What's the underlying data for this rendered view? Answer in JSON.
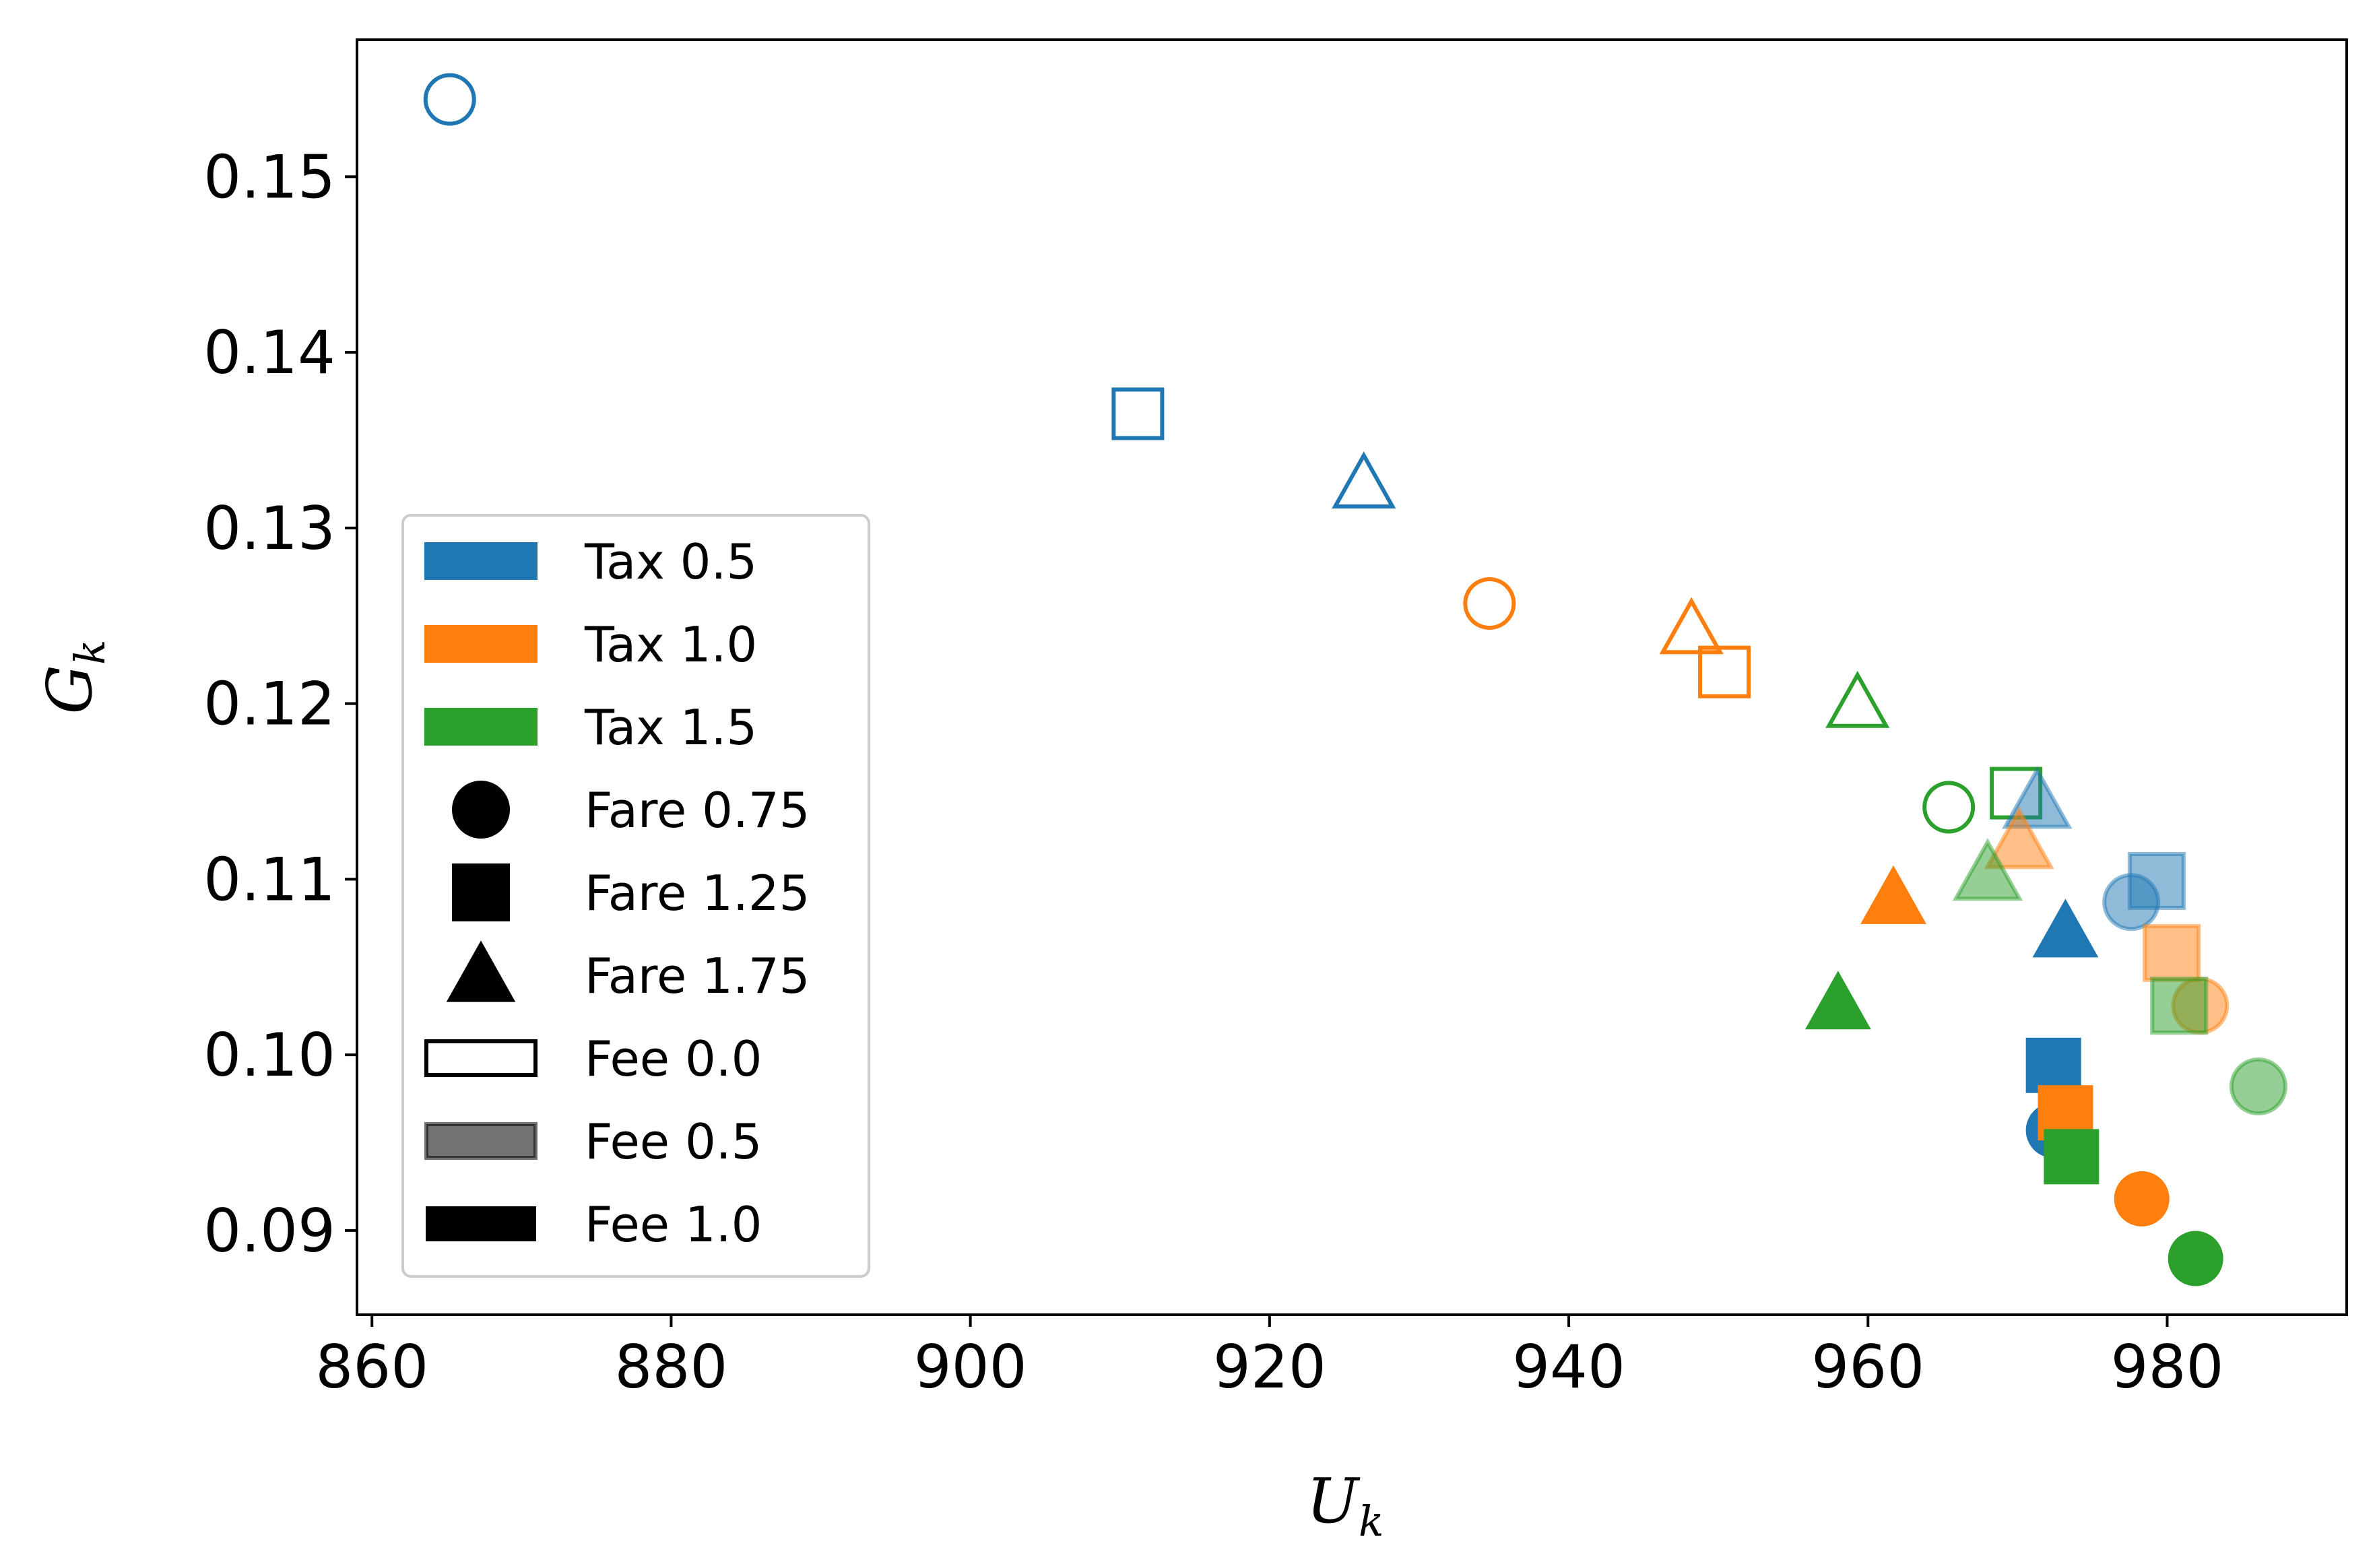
{
  "chart_data": {
    "type": "scatter",
    "title": "",
    "xlabel": "U",
    "xlabel_sub": "k",
    "ylabel": "G",
    "ylabel_sub": "k",
    "xlim": [
      859,
      992
    ],
    "ylim": [
      0.0852,
      0.1578
    ],
    "xticks": [
      860,
      880,
      900,
      920,
      940,
      960,
      980
    ],
    "xtick_labels": [
      "860",
      "880",
      "900",
      "920",
      "940",
      "960",
      "980"
    ],
    "yticks": [
      0.09,
      0.1,
      0.11,
      0.12,
      0.13,
      0.14,
      0.15
    ],
    "ytick_labels": [
      "0.09",
      "0.10",
      "0.11",
      "0.12",
      "0.13",
      "0.14",
      "0.15"
    ],
    "grid": false,
    "legend_position": "lower-left",
    "colors": {
      "Tax 0.5": "#1f77b4",
      "Tax 1.0": "#ff7f0e",
      "Tax 1.5": "#2ca02c"
    },
    "encoding": {
      "color": "tax",
      "marker": {
        "Fare 0.75": "circle",
        "Fare 1.25": "square",
        "Fare 1.75": "triangle"
      },
      "fill": {
        "Fee 0.0": "hollow",
        "Fee 0.5": "semi-transparent",
        "Fee 1.0": "solid"
      }
    },
    "legend": [
      {
        "label": "Tax 0.5",
        "kind": "patch",
        "color": "#1f77b4"
      },
      {
        "label": "Tax 1.0",
        "kind": "patch",
        "color": "#ff7f0e"
      },
      {
        "label": "Tax 1.5",
        "kind": "patch",
        "color": "#2ca02c"
      },
      {
        "label": "Fare 0.75",
        "kind": "marker",
        "marker": "circle",
        "color": "#000000"
      },
      {
        "label": "Fare 1.25",
        "kind": "marker",
        "marker": "square",
        "color": "#000000"
      },
      {
        "label": "Fare 1.75",
        "kind": "marker",
        "marker": "triangle",
        "color": "#000000"
      },
      {
        "label": "Fee 0.0",
        "kind": "fee",
        "fill": "hollow",
        "color": "#000000"
      },
      {
        "label": "Fee 0.5",
        "kind": "fee",
        "fill": "semi",
        "color": "#000000"
      },
      {
        "label": "Fee 1.0",
        "kind": "fee",
        "fill": "solid",
        "color": "#000000"
      }
    ],
    "points": [
      {
        "tax": "Tax 0.5",
        "fare": "Fare 0.75",
        "fee": "Fee 0.0",
        "marker": "circle",
        "fill": "hollow",
        "x": 865.2,
        "y": 0.1544
      },
      {
        "tax": "Tax 0.5",
        "fare": "Fare 1.25",
        "fee": "Fee 0.0",
        "marker": "square",
        "fill": "hollow",
        "x": 911.2,
        "y": 0.1365
      },
      {
        "tax": "Tax 0.5",
        "fare": "Fare 1.75",
        "fee": "Fee 0.0",
        "marker": "triangle",
        "fill": "hollow",
        "x": 926.3,
        "y": 0.1325
      },
      {
        "tax": "Tax 1.0",
        "fare": "Fare 0.75",
        "fee": "Fee 0.0",
        "marker": "circle",
        "fill": "hollow",
        "x": 934.7,
        "y": 0.1257
      },
      {
        "tax": "Tax 1.0",
        "fare": "Fare 1.75",
        "fee": "Fee 0.0",
        "marker": "triangle",
        "fill": "hollow",
        "x": 948.2,
        "y": 0.1242
      },
      {
        "tax": "Tax 1.0",
        "fare": "Fare 1.25",
        "fee": "Fee 0.0",
        "marker": "square",
        "fill": "hollow",
        "x": 950.4,
        "y": 0.1218
      },
      {
        "tax": "Tax 1.5",
        "fare": "Fare 1.75",
        "fee": "Fee 0.0",
        "marker": "triangle",
        "fill": "hollow",
        "x": 959.3,
        "y": 0.12
      },
      {
        "tax": "Tax 1.5",
        "fare": "Fare 0.75",
        "fee": "Fee 0.0",
        "marker": "circle",
        "fill": "hollow",
        "x": 965.4,
        "y": 0.1141
      },
      {
        "tax": "Tax 1.5",
        "fare": "Fare 1.25",
        "fee": "Fee 0.0",
        "marker": "square",
        "fill": "hollow",
        "x": 969.9,
        "y": 0.1149
      },
      {
        "tax": "Tax 0.5",
        "fare": "Fare 1.75",
        "fee": "Fee 0.5",
        "marker": "triangle",
        "fill": "semi",
        "x": 971.3,
        "y": 0.1144
      },
      {
        "tax": "Tax 1.0",
        "fare": "Fare 1.75",
        "fee": "Fee 0.5",
        "marker": "triangle",
        "fill": "semi",
        "x": 970.1,
        "y": 0.1121
      },
      {
        "tax": "Tax 1.5",
        "fare": "Fare 1.75",
        "fee": "Fee 0.5",
        "marker": "triangle",
        "fill": "semi",
        "x": 968.0,
        "y": 0.1103
      },
      {
        "tax": "Tax 0.5",
        "fare": "Fare 0.75",
        "fee": "Fee 0.5",
        "marker": "circle",
        "fill": "semi",
        "x": 977.6,
        "y": 0.1087
      },
      {
        "tax": "Tax 0.5",
        "fare": "Fare 1.25",
        "fee": "Fee 0.5",
        "marker": "square",
        "fill": "semi",
        "x": 979.3,
        "y": 0.1099
      },
      {
        "tax": "Tax 1.0",
        "fare": "Fare 1.25",
        "fee": "Fee 0.5",
        "marker": "square",
        "fill": "semi",
        "x": 980.3,
        "y": 0.1058
      },
      {
        "tax": "Tax 1.0",
        "fare": "Fare 0.75",
        "fee": "Fee 0.5",
        "marker": "circle",
        "fill": "semi",
        "x": 982.2,
        "y": 0.1028
      },
      {
        "tax": "Tax 1.5",
        "fare": "Fare 1.25",
        "fee": "Fee 0.5",
        "marker": "square",
        "fill": "semi",
        "x": 980.8,
        "y": 0.1028
      },
      {
        "tax": "Tax 1.5",
        "fare": "Fare 0.75",
        "fee": "Fee 0.5",
        "marker": "circle",
        "fill": "semi",
        "x": 986.1,
        "y": 0.0982
      },
      {
        "tax": "Tax 1.0",
        "fare": "Fare 1.75",
        "fee": "Fee 1.0",
        "marker": "triangle",
        "fill": "solid",
        "x": 961.7,
        "y": 0.1089
      },
      {
        "tax": "Tax 0.5",
        "fare": "Fare 1.75",
        "fee": "Fee 1.0",
        "marker": "triangle",
        "fill": "solid",
        "x": 973.2,
        "y": 0.107
      },
      {
        "tax": "Tax 1.5",
        "fare": "Fare 1.75",
        "fee": "Fee 1.0",
        "marker": "triangle",
        "fill": "solid",
        "x": 958.0,
        "y": 0.1029
      },
      {
        "tax": "Tax 0.5",
        "fare": "Fare 0.75",
        "fee": "Fee 1.0",
        "marker": "circle",
        "fill": "solid",
        "x": 972.4,
        "y": 0.0957
      },
      {
        "tax": "Tax 0.5",
        "fare": "Fare 1.25",
        "fee": "Fee 1.0",
        "marker": "square",
        "fill": "solid",
        "x": 972.4,
        "y": 0.0994
      },
      {
        "tax": "Tax 1.0",
        "fare": "Fare 1.25",
        "fee": "Fee 1.0",
        "marker": "square",
        "fill": "solid",
        "x": 973.2,
        "y": 0.0967
      },
      {
        "tax": "Tax 1.5",
        "fare": "Fare 1.25",
        "fee": "Fee 1.0",
        "marker": "square",
        "fill": "solid",
        "x": 973.6,
        "y": 0.0942
      },
      {
        "tax": "Tax 1.0",
        "fare": "Fare 0.75",
        "fee": "Fee 1.0",
        "marker": "circle",
        "fill": "solid",
        "x": 978.3,
        "y": 0.0918
      },
      {
        "tax": "Tax 1.5",
        "fare": "Fare 0.75",
        "fee": "Fee 1.0",
        "marker": "circle",
        "fill": "solid",
        "x": 981.9,
        "y": 0.0884
      }
    ]
  }
}
